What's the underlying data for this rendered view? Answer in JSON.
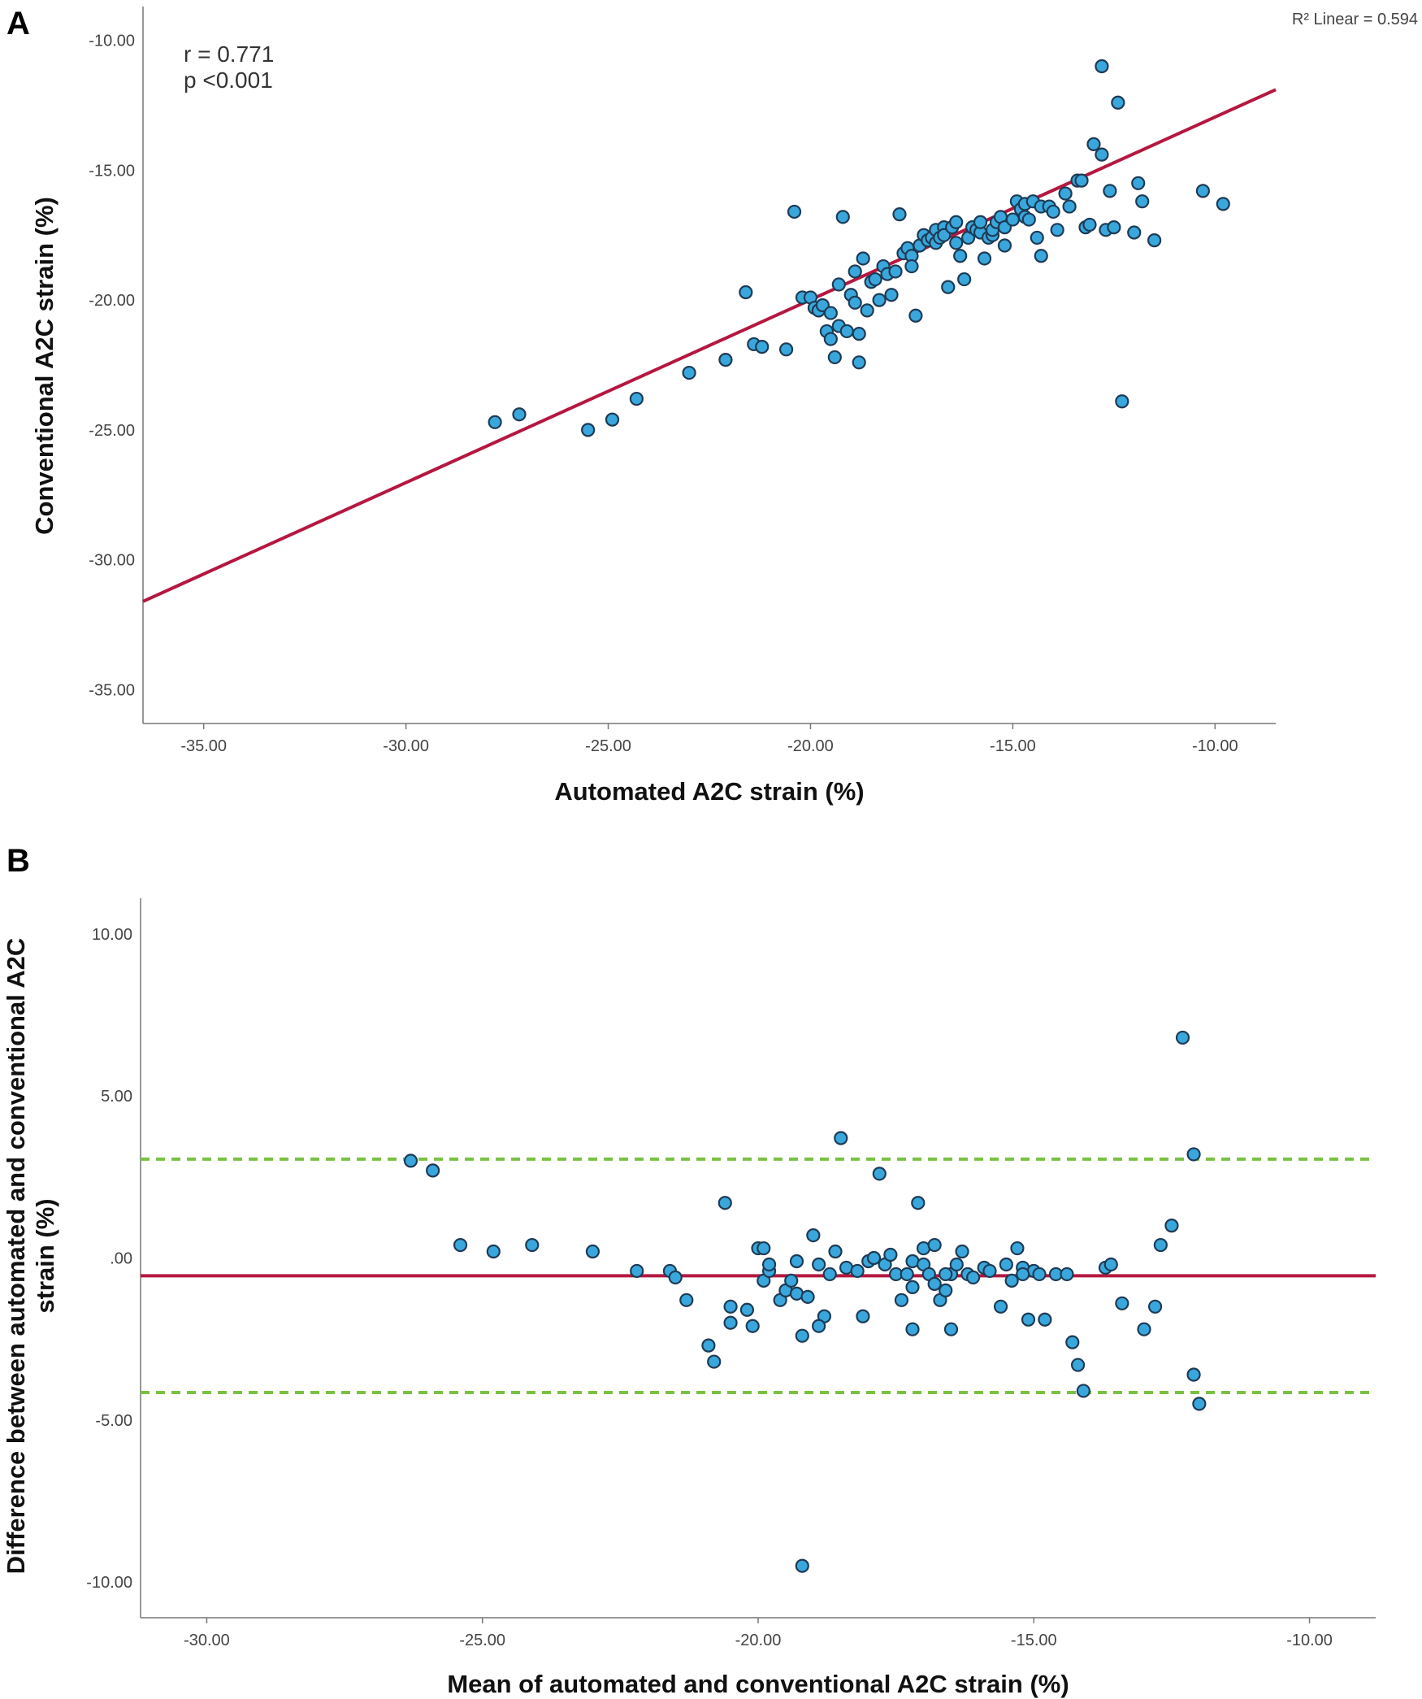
{
  "panels": {
    "A": {
      "letter": "A"
    },
    "B": {
      "letter": "B"
    }
  },
  "chart_data": [
    {
      "type": "scatter",
      "panel": "A",
      "xlabel": "Automated A2C strain (%)",
      "ylabel": "Conventional A2C strain (%)",
      "xlim": [
        -36.5,
        -8.5
      ],
      "ylim": [
        -36.3,
        -8.7
      ],
      "x_ticks": [
        -35,
        -30,
        -25,
        -20,
        -15,
        -10
      ],
      "x_tick_labels": [
        "-35.00",
        "-30.00",
        "-25.00",
        "-20.00",
        "-15.00",
        "-10.00"
      ],
      "y_ticks": [
        -10,
        -15,
        -20,
        -25,
        -30,
        -35
      ],
      "y_tick_labels": [
        "-10.00",
        "-15.00",
        "-20.00",
        "-25.00",
        "-30.00",
        "-35.00"
      ],
      "annotation": {
        "r": "r = 0.771",
        "p": "p <0.001"
      },
      "r2_label": "R² Linear = 0.594",
      "fit_line": {
        "x": [
          -36.5,
          -8.5
        ],
        "y": [
          -31.6,
          -11.9
        ],
        "color": "#b5173f"
      },
      "points": [
        [
          -27.8,
          -24.7
        ],
        [
          -27.2,
          -24.4
        ],
        [
          -25.5,
          -25.0
        ],
        [
          -24.9,
          -24.6
        ],
        [
          -24.3,
          -23.8
        ],
        [
          -23.0,
          -22.8
        ],
        [
          -22.1,
          -22.3
        ],
        [
          -21.6,
          -19.7
        ],
        [
          -21.4,
          -21.7
        ],
        [
          -21.2,
          -21.8
        ],
        [
          -20.6,
          -21.9
        ],
        [
          -20.4,
          -16.6
        ],
        [
          -20.2,
          -19.9
        ],
        [
          -20.0,
          -19.9
        ],
        [
          -19.9,
          -20.3
        ],
        [
          -19.8,
          -20.4
        ],
        [
          -19.7,
          -20.2
        ],
        [
          -19.6,
          -21.2
        ],
        [
          -19.5,
          -20.5
        ],
        [
          -19.5,
          -21.5
        ],
        [
          -19.4,
          -22.2
        ],
        [
          -19.3,
          -21.0
        ],
        [
          -19.3,
          -19.4
        ],
        [
          -19.2,
          -16.8
        ],
        [
          -19.1,
          -21.2
        ],
        [
          -19.0,
          -19.8
        ],
        [
          -18.9,
          -18.9
        ],
        [
          -18.9,
          -20.1
        ],
        [
          -18.8,
          -21.3
        ],
        [
          -18.8,
          -22.4
        ],
        [
          -18.7,
          -18.4
        ],
        [
          -18.6,
          -20.4
        ],
        [
          -18.5,
          -19.3
        ],
        [
          -18.4,
          -19.2
        ],
        [
          -18.3,
          -20.0
        ],
        [
          -18.2,
          -18.7
        ],
        [
          -18.1,
          -19.0
        ],
        [
          -18.0,
          -19.8
        ],
        [
          -17.9,
          -18.9
        ],
        [
          -17.8,
          -16.7
        ],
        [
          -17.7,
          -18.2
        ],
        [
          -17.6,
          -18.0
        ],
        [
          -17.5,
          -18.3
        ],
        [
          -17.5,
          -18.7
        ],
        [
          -17.4,
          -20.6
        ],
        [
          -17.3,
          -17.9
        ],
        [
          -17.2,
          -17.5
        ],
        [
          -17.1,
          -17.7
        ],
        [
          -17.0,
          -17.6
        ],
        [
          -16.9,
          -17.3
        ],
        [
          -16.9,
          -17.8
        ],
        [
          -16.8,
          -17.6
        ],
        [
          -16.7,
          -17.2
        ],
        [
          -16.7,
          -17.5
        ],
        [
          -16.6,
          -19.5
        ],
        [
          -16.5,
          -17.2
        ],
        [
          -16.4,
          -17.8
        ],
        [
          -16.4,
          -17.0
        ],
        [
          -16.3,
          -18.3
        ],
        [
          -16.2,
          -19.2
        ],
        [
          -16.1,
          -17.6
        ],
        [
          -16.0,
          -17.2
        ],
        [
          -15.9,
          -17.3
        ],
        [
          -15.8,
          -17.4
        ],
        [
          -15.8,
          -17.0
        ],
        [
          -15.7,
          -18.4
        ],
        [
          -15.6,
          -17.6
        ],
        [
          -15.5,
          -17.5
        ],
        [
          -15.5,
          -17.3
        ],
        [
          -15.4,
          -17.0
        ],
        [
          -15.3,
          -16.8
        ],
        [
          -15.2,
          -17.2
        ],
        [
          -15.2,
          -17.9
        ],
        [
          -15.0,
          -16.9
        ],
        [
          -14.9,
          -16.2
        ],
        [
          -14.8,
          -16.5
        ],
        [
          -14.7,
          -16.8
        ],
        [
          -14.7,
          -16.3
        ],
        [
          -14.6,
          -16.9
        ],
        [
          -14.5,
          -16.2
        ],
        [
          -14.4,
          -17.6
        ],
        [
          -14.3,
          -16.4
        ],
        [
          -14.3,
          -18.3
        ],
        [
          -14.1,
          -16.4
        ],
        [
          -14.0,
          -16.6
        ],
        [
          -13.9,
          -17.3
        ],
        [
          -13.7,
          -15.9
        ],
        [
          -13.6,
          -16.4
        ],
        [
          -13.4,
          -15.4
        ],
        [
          -13.3,
          -15.4
        ],
        [
          -13.2,
          -17.2
        ],
        [
          -13.1,
          -17.1
        ],
        [
          -13.0,
          -14.0
        ],
        [
          -12.8,
          -14.4
        ],
        [
          -12.7,
          -17.3
        ],
        [
          -12.6,
          -15.8
        ],
        [
          -12.4,
          -12.4
        ],
        [
          -12.5,
          -17.2
        ],
        [
          -12.3,
          -23.9
        ],
        [
          -12.0,
          -17.4
        ],
        [
          -11.9,
          -15.5
        ],
        [
          -11.8,
          -16.2
        ],
        [
          -11.5,
          -17.7
        ],
        [
          -12.8,
          -11.0
        ],
        [
          -10.3,
          -15.8
        ],
        [
          -9.8,
          -16.3
        ]
      ]
    },
    {
      "type": "scatter",
      "panel": "B",
      "xlabel": "Mean of automated and conventional A2C strain (%)",
      "ylabel_lines": [
        "Difference between automated and conventional A2C",
        "strain (%)"
      ],
      "xlim": [
        -31.2,
        -8.8
      ],
      "ylim": [
        -11.1,
        11.1
      ],
      "x_ticks": [
        -30,
        -25,
        -20,
        -15,
        -10
      ],
      "x_tick_labels": [
        "-30.00",
        "-25.00",
        "-20.00",
        "-15.00",
        "-10.00"
      ],
      "y_ticks": [
        10,
        5,
        0,
        -5,
        -10
      ],
      "y_tick_labels": [
        "10.00",
        "5.00",
        ".00",
        "-5.00",
        "-10.00"
      ],
      "mean_line": {
        "y": -0.55,
        "color": "#b5173f"
      },
      "limits_of_agreement": {
        "upper": 3.05,
        "lower": -4.15,
        "color": "#7ac143"
      },
      "points": [
        [
          -26.3,
          3.0
        ],
        [
          -25.9,
          2.7
        ],
        [
          -25.4,
          0.4
        ],
        [
          -24.8,
          0.2
        ],
        [
          -24.1,
          0.4
        ],
        [
          -23.0,
          0.2
        ],
        [
          -22.2,
          -0.4
        ],
        [
          -21.6,
          -0.4
        ],
        [
          -21.5,
          -0.6
        ],
        [
          -21.3,
          -1.3
        ],
        [
          -20.9,
          -2.7
        ],
        [
          -20.8,
          -3.2
        ],
        [
          -20.6,
          1.7
        ],
        [
          -20.5,
          -1.5
        ],
        [
          -20.5,
          -2.0
        ],
        [
          -20.2,
          -1.6
        ],
        [
          -20.1,
          -2.1
        ],
        [
          -20.0,
          0.3
        ],
        [
          -19.9,
          0.3
        ],
        [
          -19.9,
          -0.7
        ],
        [
          -19.8,
          -0.4
        ],
        [
          -19.8,
          -0.2
        ],
        [
          -19.6,
          -1.3
        ],
        [
          -19.5,
          -1.0
        ],
        [
          -19.4,
          -0.7
        ],
        [
          -19.3,
          -1.1
        ],
        [
          -19.3,
          -0.1
        ],
        [
          -19.2,
          -2.4
        ],
        [
          -19.1,
          -1.2
        ],
        [
          -19.0,
          0.7
        ],
        [
          -18.9,
          -0.2
        ],
        [
          -18.8,
          -1.8
        ],
        [
          -18.7,
          -0.5
        ],
        [
          -18.6,
          0.2
        ],
        [
          -18.5,
          3.7
        ],
        [
          -18.4,
          -0.3
        ],
        [
          -18.2,
          -0.4
        ],
        [
          -18.1,
          -1.8
        ],
        [
          -18.0,
          -0.1
        ],
        [
          -17.9,
          0.0
        ],
        [
          -17.8,
          2.6
        ],
        [
          -17.7,
          -0.2
        ],
        [
          -17.6,
          0.1
        ],
        [
          -17.5,
          -0.5
        ],
        [
          -17.4,
          -1.3
        ],
        [
          -17.3,
          -0.5
        ],
        [
          -17.2,
          -0.1
        ],
        [
          -17.1,
          1.7
        ],
        [
          -17.0,
          -0.2
        ],
        [
          -17.0,
          0.3
        ],
        [
          -16.9,
          -0.5
        ],
        [
          -16.8,
          0.4
        ],
        [
          -16.8,
          -0.8
        ],
        [
          -16.7,
          -1.3
        ],
        [
          -16.6,
          -1.0
        ],
        [
          -16.5,
          -2.2
        ],
        [
          -16.5,
          -0.5
        ],
        [
          -16.4,
          -0.2
        ],
        [
          -16.3,
          0.2
        ],
        [
          -16.2,
          -0.5
        ],
        [
          -16.1,
          -0.6
        ],
        [
          -15.9,
          -0.3
        ],
        [
          -15.8,
          -0.4
        ],
        [
          -15.6,
          -1.5
        ],
        [
          -15.5,
          -0.2
        ],
        [
          -15.4,
          -0.7
        ],
        [
          -15.3,
          0.3
        ],
        [
          -15.2,
          -0.3
        ],
        [
          -15.1,
          -1.9
        ],
        [
          -15.0,
          -0.4
        ],
        [
          -14.9,
          -0.5
        ],
        [
          -14.8,
          -1.9
        ],
        [
          -14.6,
          -0.5
        ],
        [
          -14.4,
          -0.5
        ],
        [
          -14.3,
          -2.6
        ],
        [
          -14.2,
          -3.3
        ],
        [
          -14.1,
          -4.1
        ],
        [
          -15.2,
          -0.5
        ],
        [
          -16.6,
          -0.5
        ],
        [
          -17.2,
          -2.2
        ],
        [
          -17.2,
          -0.9
        ],
        [
          -18.9,
          -2.1
        ],
        [
          -19.2,
          -9.5
        ],
        [
          -13.7,
          -0.3
        ],
        [
          -13.6,
          -0.2
        ],
        [
          -13.4,
          -1.4
        ],
        [
          -13.0,
          -2.2
        ],
        [
          -12.8,
          -1.5
        ],
        [
          -12.7,
          0.4
        ],
        [
          -12.5,
          1.0
        ],
        [
          -12.3,
          6.8
        ],
        [
          -12.1,
          3.2
        ],
        [
          -12.1,
          -3.6
        ],
        [
          -12.0,
          -4.5
        ]
      ]
    }
  ]
}
